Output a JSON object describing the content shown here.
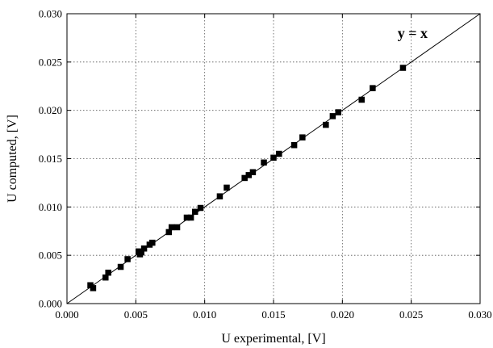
{
  "chart_data": {
    "type": "scatter",
    "title": "",
    "xlabel": "U experimental, [V]",
    "ylabel": "U computed, [V]",
    "xlim": [
      0.0,
      0.03
    ],
    "ylim": [
      0.0,
      0.03
    ],
    "x_ticks": [
      "0.000",
      "0.005",
      "0.010",
      "0.015",
      "0.020",
      "0.025",
      "0.030"
    ],
    "y_ticks": [
      "0.000",
      "0.005",
      "0.010",
      "0.015",
      "0.020",
      "0.025",
      "0.030"
    ],
    "grid": true,
    "grid_style": "dotted",
    "reference_line": {
      "label": "y = x",
      "from": [
        0.0,
        0.0
      ],
      "to": [
        0.03,
        0.03
      ]
    },
    "marker": "square",
    "marker_color": "#000000",
    "series": [
      {
        "x": [
          0.0017,
          0.0019,
          0.0028,
          0.003,
          0.0039,
          0.0044,
          0.0052,
          0.0053,
          0.0054,
          0.0056,
          0.006,
          0.0062,
          0.0074,
          0.0076,
          0.008,
          0.0087,
          0.009,
          0.0093,
          0.0097,
          0.0111,
          0.0116,
          0.0129,
          0.0132,
          0.0135,
          0.0143,
          0.015,
          0.0154,
          0.0165,
          0.0171,
          0.0188,
          0.0193,
          0.0197,
          0.0214,
          0.0222,
          0.0244
        ],
        "y": [
          0.0019,
          0.0016,
          0.0027,
          0.0032,
          0.0038,
          0.0046,
          0.0054,
          0.0051,
          0.0053,
          0.0057,
          0.0061,
          0.0063,
          0.0074,
          0.0079,
          0.0079,
          0.0089,
          0.0089,
          0.0095,
          0.0099,
          0.0111,
          0.012,
          0.013,
          0.0133,
          0.0136,
          0.0146,
          0.0151,
          0.0155,
          0.0164,
          0.0172,
          0.0185,
          0.0194,
          0.0198,
          0.0211,
          0.0223,
          0.0244
        ]
      }
    ]
  }
}
